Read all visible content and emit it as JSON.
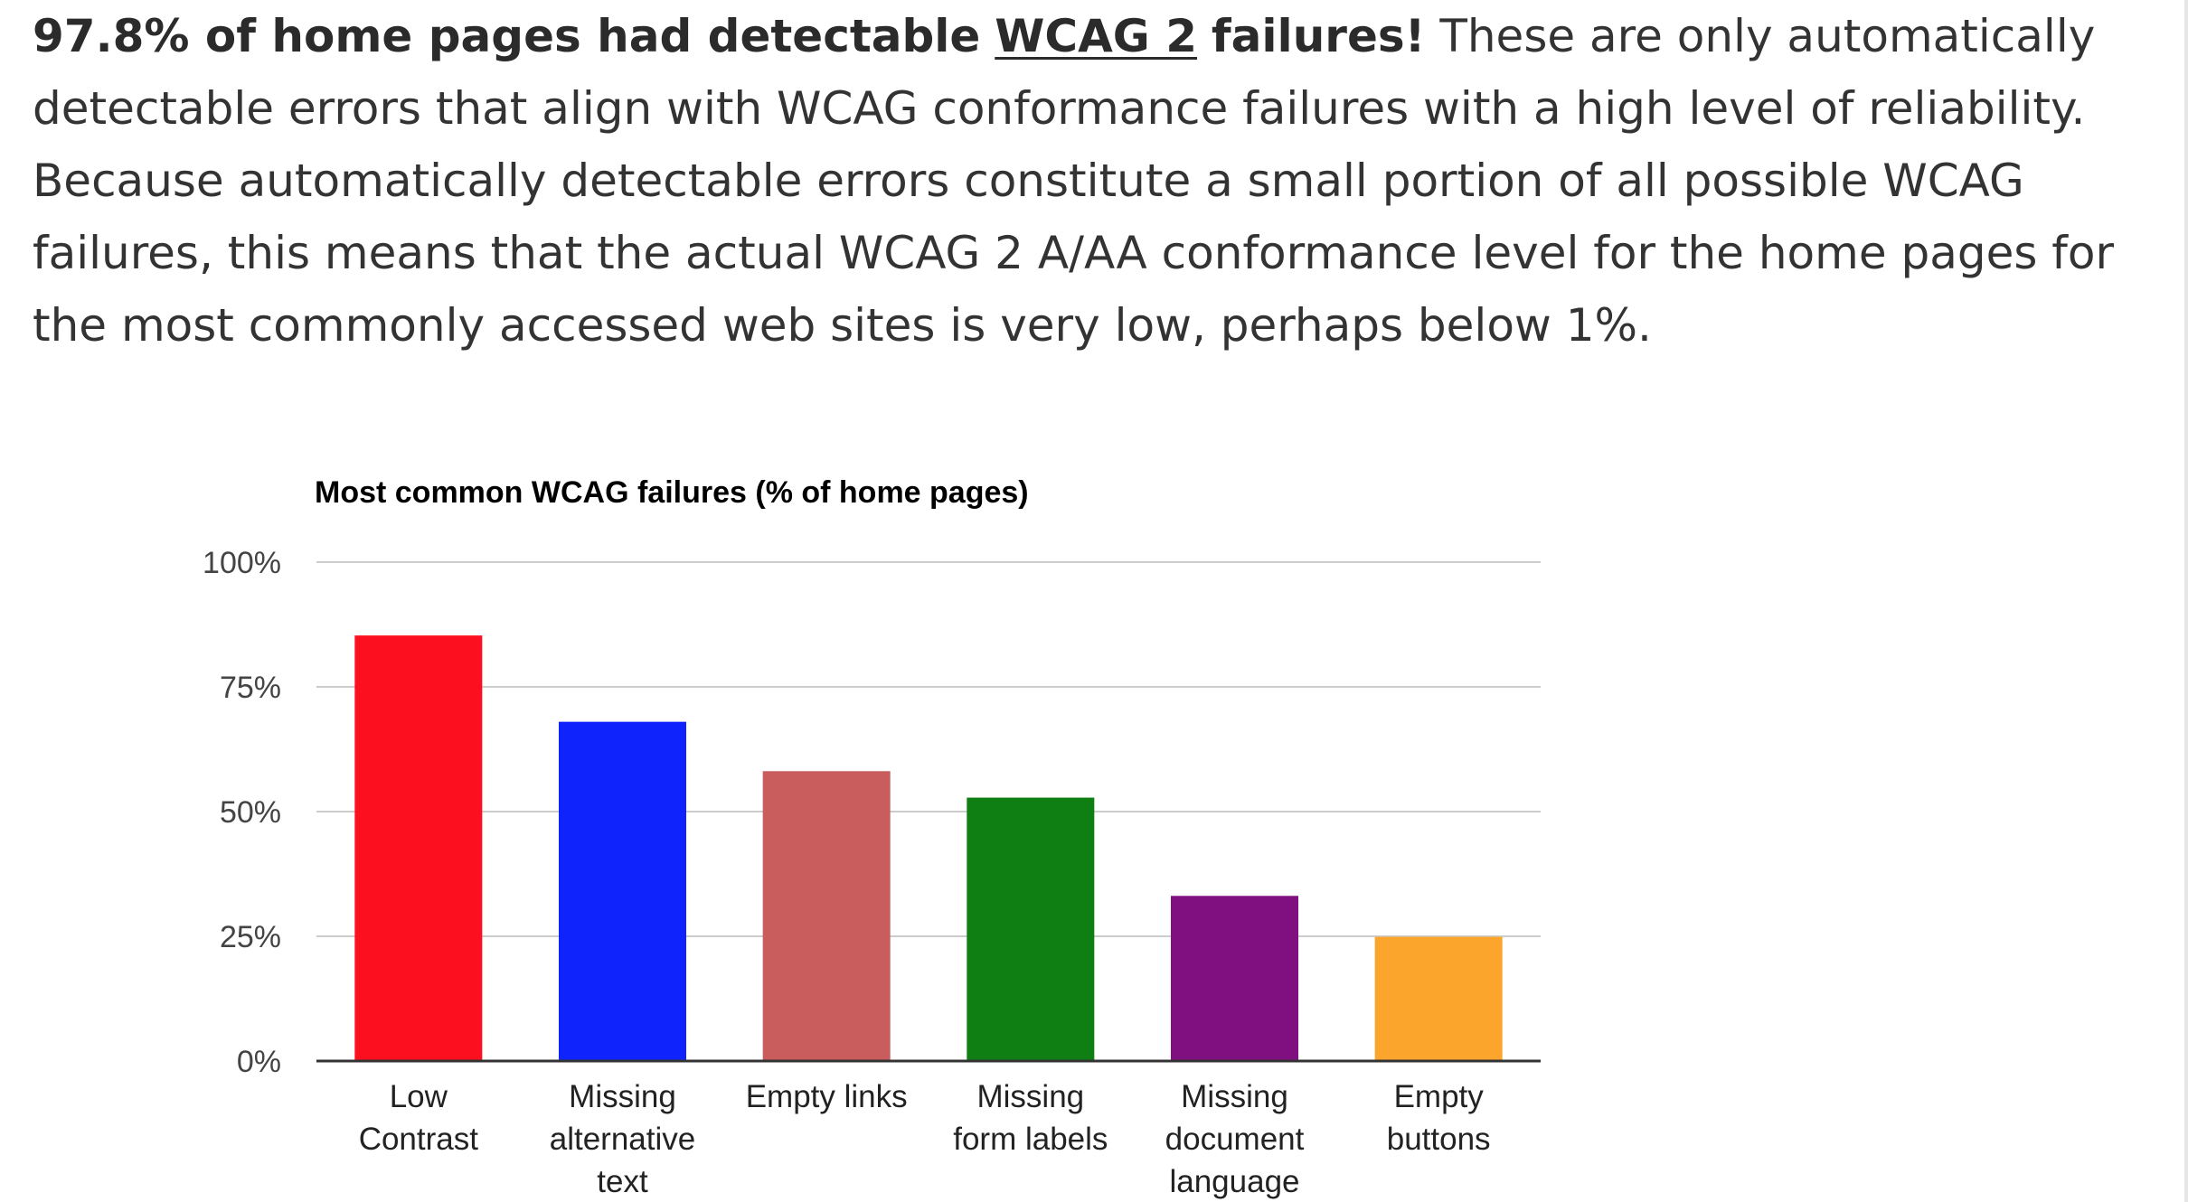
{
  "intro": {
    "bold_prefix": "97.8% of home pages had detectable",
    "link_text": "WCAG 2",
    "bold_suffix": "failures!",
    "line1_rest": "These are only automatically",
    "line2": "detectable errors that align with WCAG conformance failures with a high level of reliability.",
    "line3": "Because automatically detectable errors constitute a small portion of all possible WCAG",
    "line4": "failures, this means that the actual WCAG 2 A/AA conformance level for the home pages for",
    "line5": "the most commonly accessed web sites is very low, perhaps below 1%."
  },
  "chart_data": {
    "type": "bar",
    "title": "Most common WCAG failures (% of home pages)",
    "xlabel": "",
    "ylabel": "",
    "ylim": [
      0,
      100
    ],
    "yticks": [
      "0%",
      "25%",
      "50%",
      "75%",
      "100%"
    ],
    "ytick_values": [
      0,
      25,
      50,
      75,
      100
    ],
    "grid": true,
    "legend": "none",
    "categories": [
      [
        "Low",
        "Contrast"
      ],
      [
        "Missing",
        "alternative",
        "text"
      ],
      [
        "Empty links"
      ],
      [
        "Missing",
        "form labels"
      ],
      [
        "Missing",
        "document",
        "language"
      ],
      [
        "Empty",
        "buttons"
      ]
    ],
    "values": [
      85.3,
      68.0,
      58.1,
      52.8,
      33.1,
      24.9
    ],
    "colors": [
      "#fc101f",
      "#0f24fc",
      "#c95c5d",
      "#0f7f14",
      "#800f80",
      "#fca52d"
    ]
  }
}
